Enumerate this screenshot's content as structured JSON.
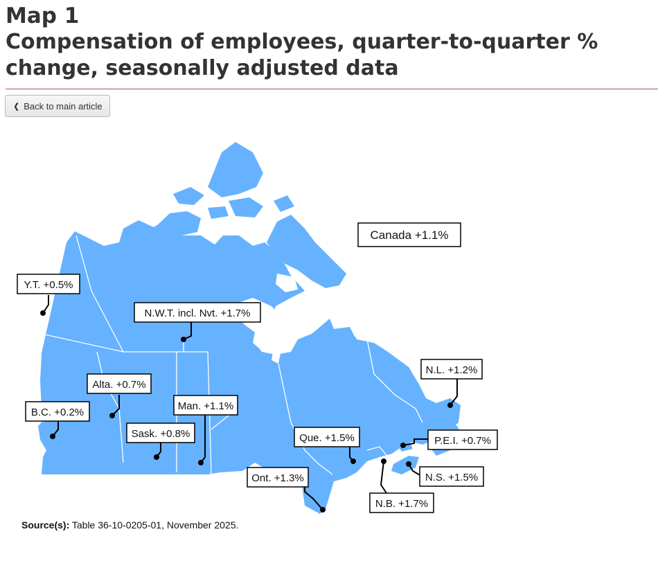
{
  "header": {
    "map_number": "Map 1",
    "title": "Compensation of employees, quarter-to-quarter % change, seasonally adjusted data"
  },
  "nav": {
    "back_label": "Back to main article",
    "back_icon": "chevron-left-icon"
  },
  "map": {
    "land_color": "#66b2ff",
    "border_color": "#ffffff",
    "label_border_color": "#000000",
    "labels": [
      {
        "id": "canada",
        "text": "Canada +1.1%"
      },
      {
        "id": "yt",
        "text": "Y.T. +0.5%"
      },
      {
        "id": "nwt",
        "text": "N.W.T. incl. Nvt. +1.7%"
      },
      {
        "id": "nl",
        "text": "N.L. +1.2%"
      },
      {
        "id": "alta",
        "text": "Alta. +0.7%"
      },
      {
        "id": "bc",
        "text": "B.C. +0.2%"
      },
      {
        "id": "man",
        "text": "Man. +1.1%"
      },
      {
        "id": "sask",
        "text": "Sask. +0.8%"
      },
      {
        "id": "que",
        "text": "Que. +1.5%"
      },
      {
        "id": "pei",
        "text": "P.E.I. +0.7%"
      },
      {
        "id": "ont",
        "text": "Ont. +1.3%"
      },
      {
        "id": "ns",
        "text": "N.S. +1.5%"
      },
      {
        "id": "nb",
        "text": "N.B. +1.7%"
      }
    ]
  },
  "source": {
    "label": "Source(s):",
    "text": "Table 36-10-0205-01, November 2025."
  }
}
